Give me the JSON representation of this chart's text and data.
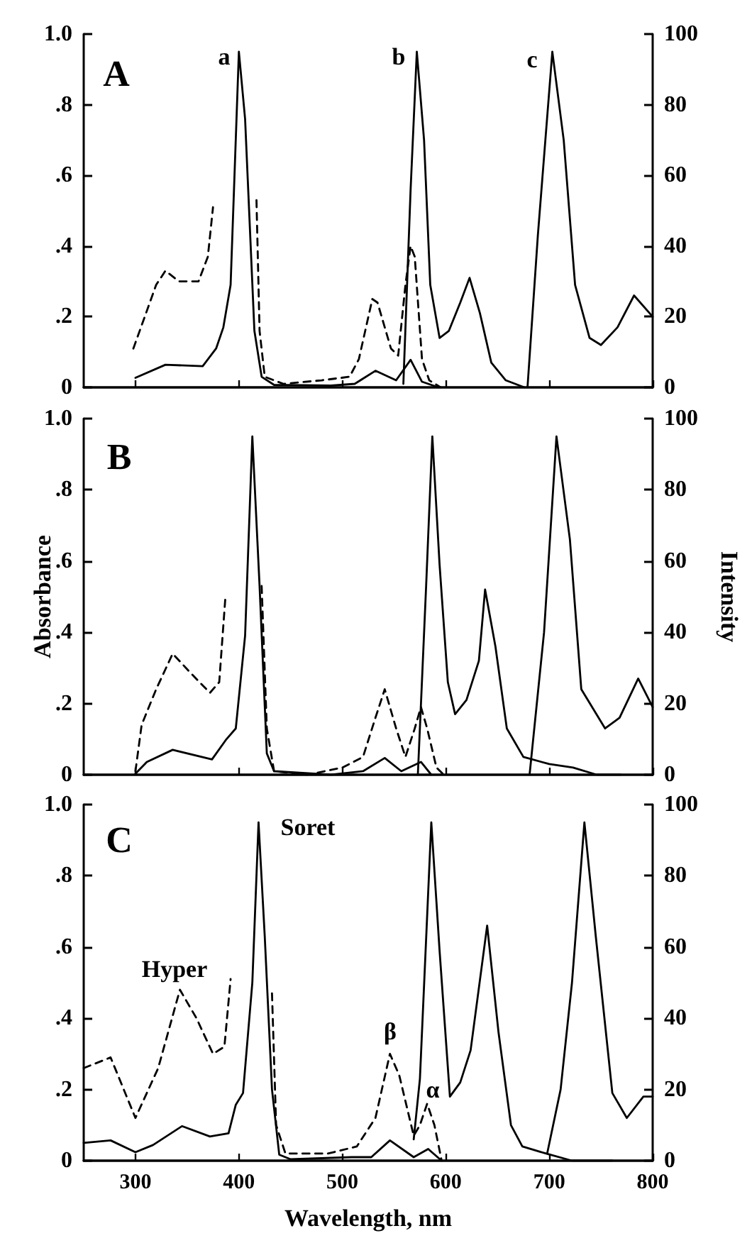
{
  "chart_data": [
    {
      "type": "line",
      "xlim": [
        250,
        800
      ],
      "xticks": [
        300,
        400,
        500,
        600,
        700,
        800
      ],
      "ylim": [
        0,
        1
      ],
      "yticks": [
        {
          "value": 0,
          "label": "0"
        },
        {
          "value": 0.2,
          "label": ".2"
        },
        {
          "value": 0.4,
          "label": ".4"
        },
        {
          "value": 0.6,
          "label": ".6"
        },
        {
          "value": 0.8,
          "label": ".8"
        },
        {
          "value": 1,
          "label": "1.0"
        }
      ],
      "y2lim": [
        0,
        100
      ],
      "y2ticks": [
        0,
        20,
        40,
        60,
        80,
        100
      ],
      "tick_labels": "y",
      "grid": false,
      "marker": "none",
      "annotations": [
        "A",
        "a",
        "b",
        "c"
      ],
      "series": [
        {
          "color": "#000000",
          "line_style": "solid",
          "x": [
            300,
            329,
            365,
            378,
            385,
            392,
            400,
            406,
            415,
            422,
            434,
            489,
            512,
            532,
            552,
            566,
            577,
            593
          ],
          "values": [
            0.027,
            0.064,
            0.06,
            0.11,
            0.17,
            0.29,
            0.95,
            0.76,
            0.16,
            0.03,
            0.007,
            0.005,
            0.01,
            0.047,
            0.02,
            0.078,
            0.016,
            0
          ]
        },
        {
          "color": "#000000",
          "line_style": "dashed",
          "axis": "y2",
          "x": [
            298,
            320,
            329,
            342,
            361,
            370,
            375,
            400,
            417,
            420,
            425,
            443,
            480,
            507,
            516,
            529,
            534,
            547,
            554,
            561,
            566,
            570,
            577,
            584,
            595
          ],
          "values": [
            11,
            29,
            33,
            30,
            30,
            37,
            51,
            null,
            53,
            16,
            3,
            1,
            2,
            3,
            8,
            25,
            24,
            11,
            9,
            29,
            40,
            37,
            8,
            2,
            0
          ]
        },
        {
          "color": "#000000",
          "line_style": "solid",
          "axis": "y2",
          "x": [
            559,
            566,
            572,
            579,
            585,
            594,
            603,
            614,
            623,
            633,
            644,
            658,
            676
          ],
          "values": [
            1,
            56,
            95,
            70,
            29,
            14,
            16,
            24,
            31,
            21,
            7,
            2,
            0
          ]
        },
        {
          "color": "#000000",
          "line_style": "solid",
          "axis": "y2",
          "x": [
            679,
            689,
            703,
            714,
            725,
            739,
            750,
            766,
            782,
            800
          ],
          "values": [
            0,
            43,
            95,
            70,
            29,
            14,
            12,
            17,
            26,
            20
          ]
        }
      ]
    },
    {
      "type": "line",
      "xlim": [
        250,
        800
      ],
      "xticks": [
        300,
        400,
        500,
        600,
        700,
        800
      ],
      "ylim": [
        0,
        1
      ],
      "yticks": [
        {
          "value": 0,
          "label": "0"
        },
        {
          "value": 0.2,
          "label": ".2"
        },
        {
          "value": 0.4,
          "label": ".4"
        },
        {
          "value": 0.6,
          "label": ".6"
        },
        {
          "value": 0.8,
          "label": ".8"
        },
        {
          "value": 1,
          "label": "1.0"
        }
      ],
      "y2lim": [
        0,
        100
      ],
      "y2ticks": [
        0,
        20,
        40,
        60,
        80,
        100
      ],
      "tick_labels": "y",
      "grid": false,
      "marker": "none",
      "ylabel": "Absorbance",
      "y2label": "Intensity",
      "annotations": [
        "B"
      ],
      "series": [
        {
          "color": "#000000",
          "line_style": "solid",
          "x": [
            300,
            311,
            336,
            374,
            388,
            397,
            406,
            413,
            420,
            427,
            434,
            489,
            520,
            541,
            557,
            576,
            586
          ],
          "values": [
            0.003,
            0.036,
            0.07,
            0.043,
            0.1,
            0.13,
            0.39,
            0.95,
            0.53,
            0.06,
            0.01,
            0,
            0.01,
            0.047,
            0.01,
            0.036,
            0
          ]
        },
        {
          "color": "#000000",
          "line_style": "dashed",
          "axis": "y2",
          "x": [
            300,
            306,
            320,
            336,
            352,
            372,
            381,
            387,
            400,
            422,
            427,
            434,
            466,
            500,
            520,
            532,
            541,
            552,
            561,
            570,
            576,
            582,
            591,
            598
          ],
          "values": [
            1,
            14,
            24,
            34,
            29,
            23,
            26,
            50,
            null,
            53,
            13,
            1,
            0,
            2,
            5,
            16,
            24,
            13,
            5,
            13,
            19,
            13,
            2,
            0
          ]
        },
        {
          "color": "#000000",
          "line_style": "solid",
          "axis": "y2",
          "x": [
            573,
            581,
            587,
            594,
            602,
            609,
            620,
            632,
            638,
            648,
            659,
            675,
            700,
            723,
            746,
            769
          ],
          "values": [
            0,
            53,
            95,
            59,
            26,
            17,
            21,
            32,
            52,
            36,
            13,
            5,
            3,
            2,
            0,
            0
          ]
        },
        {
          "color": "#000000",
          "line_style": "solid",
          "axis": "y2",
          "x": [
            681,
            695,
            707,
            720,
            731,
            754,
            768,
            786,
            800
          ],
          "values": [
            0,
            40,
            95,
            66,
            24,
            13,
            16,
            27,
            19
          ]
        }
      ]
    },
    {
      "type": "line",
      "xlim": [
        250,
        800
      ],
      "xticks": [
        300,
        400,
        500,
        600,
        700,
        800
      ],
      "ylim": [
        0,
        1
      ],
      "yticks": [
        {
          "value": 0,
          "label": "0"
        },
        {
          "value": 0.2,
          "label": ".2"
        },
        {
          "value": 0.4,
          "label": ".4"
        },
        {
          "value": 0.6,
          "label": ".6"
        },
        {
          "value": 0.8,
          "label": ".8"
        },
        {
          "value": 1,
          "label": "1.0"
        }
      ],
      "y2lim": [
        0,
        100
      ],
      "y2ticks": [
        0,
        20,
        40,
        60,
        80,
        100
      ],
      "grid": false,
      "marker": "none",
      "xlabel": "Wavelength, nm",
      "annotations": [
        "C",
        "Soret",
        "Hyper",
        "β",
        "α"
      ],
      "series": [
        {
          "color": "#000000",
          "line_style": "solid",
          "x": [
            250,
            276,
            300,
            317,
            345,
            372,
            390,
            397,
            404,
            413,
            419,
            425,
            432,
            439,
            450,
            509,
            528,
            546,
            569,
            583,
            596
          ],
          "values": [
            0.05,
            0.057,
            0.024,
            0.044,
            0.097,
            0.068,
            0.077,
            0.157,
            0.19,
            0.5,
            0.95,
            0.63,
            0.2,
            0.017,
            0.004,
            0.01,
            0.01,
            0.057,
            0.01,
            0.033,
            0
          ]
        },
        {
          "color": "#000000",
          "line_style": "dashed",
          "axis": "y2",
          "x": [
            250,
            276,
            300,
            322,
            343,
            359,
            375,
            386,
            392,
            410,
            432,
            436,
            445,
            486,
            514,
            532,
            546,
            555,
            569,
            575,
            582,
            589,
            596
          ],
          "values": [
            26,
            29,
            12,
            26,
            48,
            40,
            30,
            32,
            51,
            null,
            47,
            10,
            2,
            2,
            4,
            12,
            30,
            24,
            7,
            10,
            16,
            10,
            0
          ]
        },
        {
          "color": "#000000",
          "line_style": "solid",
          "axis": "y2",
          "x": [
            569,
            575,
            586,
            594,
            604,
            614,
            624,
            640,
            651,
            663,
            674,
            697,
            722,
            761
          ],
          "values": [
            6,
            23,
            95,
            59,
            18,
            22,
            31,
            66,
            36,
            10,
            4,
            2,
            0,
            0
          ]
        },
        {
          "color": "#000000",
          "line_style": "solid",
          "axis": "y2",
          "x": [
            698,
            711,
            722,
            734,
            745,
            761,
            775,
            791,
            800
          ],
          "values": [
            2,
            20,
            50,
            95,
            63,
            19,
            12,
            18,
            18
          ]
        }
      ]
    }
  ]
}
